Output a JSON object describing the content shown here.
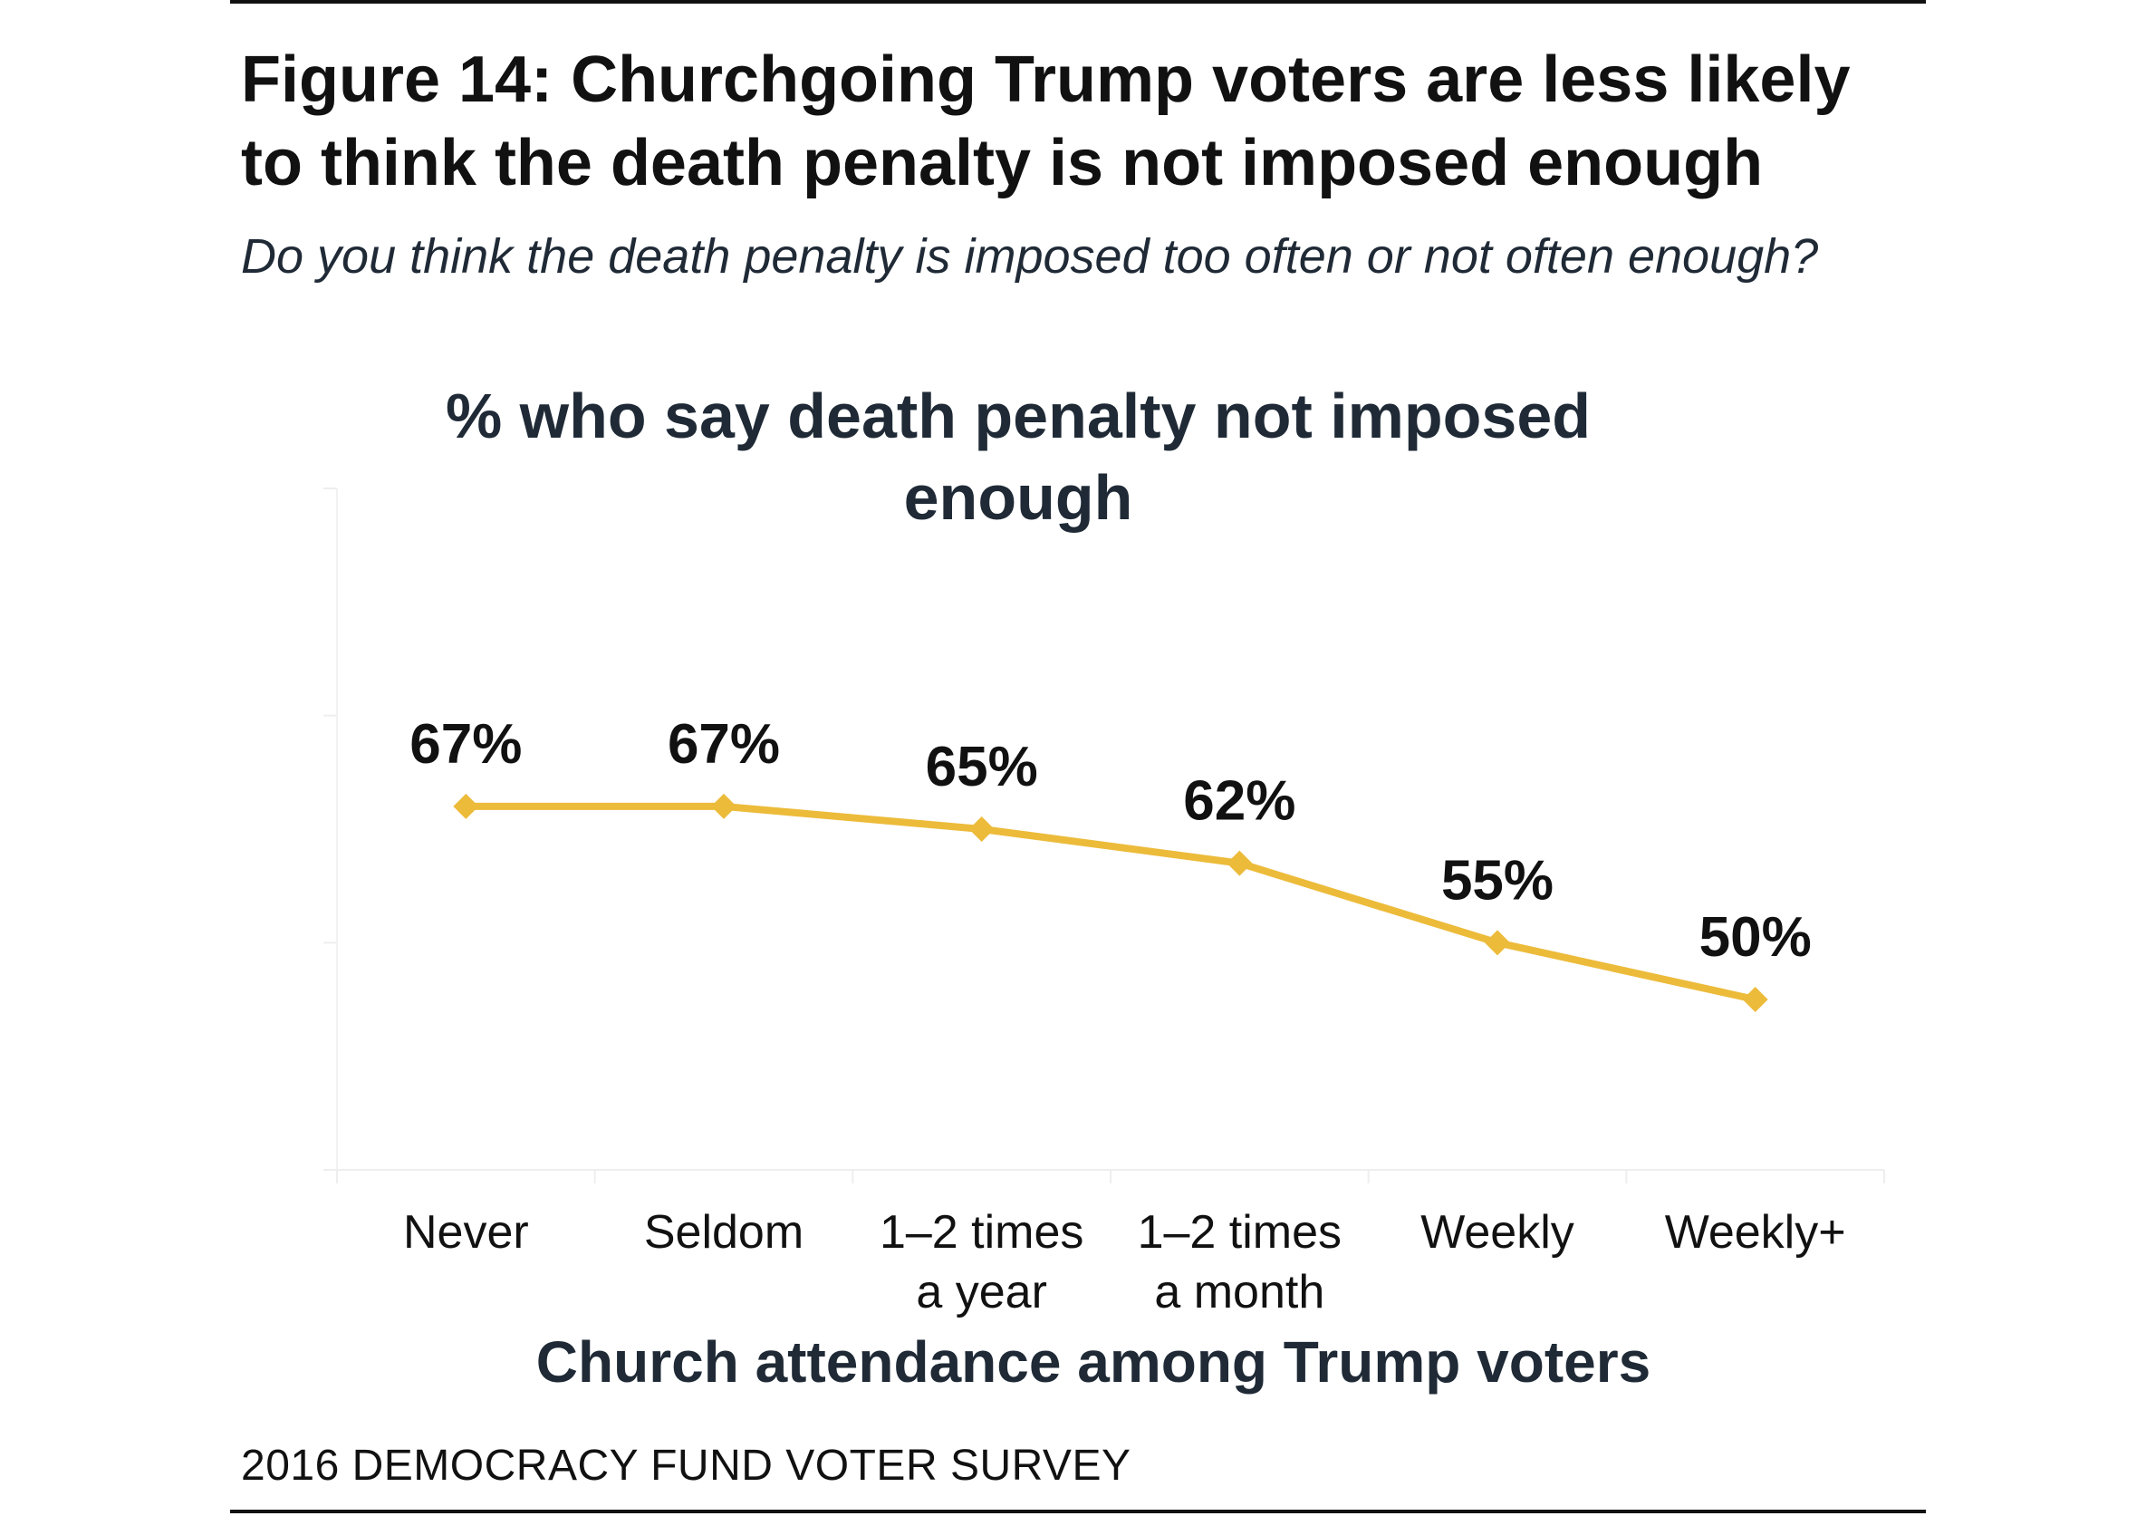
{
  "figure": {
    "title": "Figure 14: Churchgoing Trump voters are less likely to think the death penalty is not imposed enough",
    "subtitle": "Do you think the death penalty is imposed too often or not often enough?",
    "source": "2016 DEMOCRACY FUND VOTER SURVEY"
  },
  "chart_data": {
    "type": "line",
    "title": "% who say death penalty not imposed enough",
    "xlabel": "Church attendance among Trump voters",
    "ylabel": "",
    "categories": [
      [
        "Never"
      ],
      [
        "Seldom"
      ],
      [
        "1–2 times",
        "a year"
      ],
      [
        "1–2 times",
        "a month"
      ],
      [
        "Weekly"
      ],
      [
        "Weekly+"
      ]
    ],
    "values": [
      67,
      67,
      65,
      62,
      55,
      50
    ],
    "data_labels": [
      "67%",
      "67%",
      "65%",
      "62%",
      "55%",
      "50%"
    ],
    "ylim": [
      35,
      95
    ],
    "yticks": [
      35,
      55,
      75,
      95
    ],
    "grid": true,
    "marker": "diamond",
    "color": "#ecbb3a"
  }
}
